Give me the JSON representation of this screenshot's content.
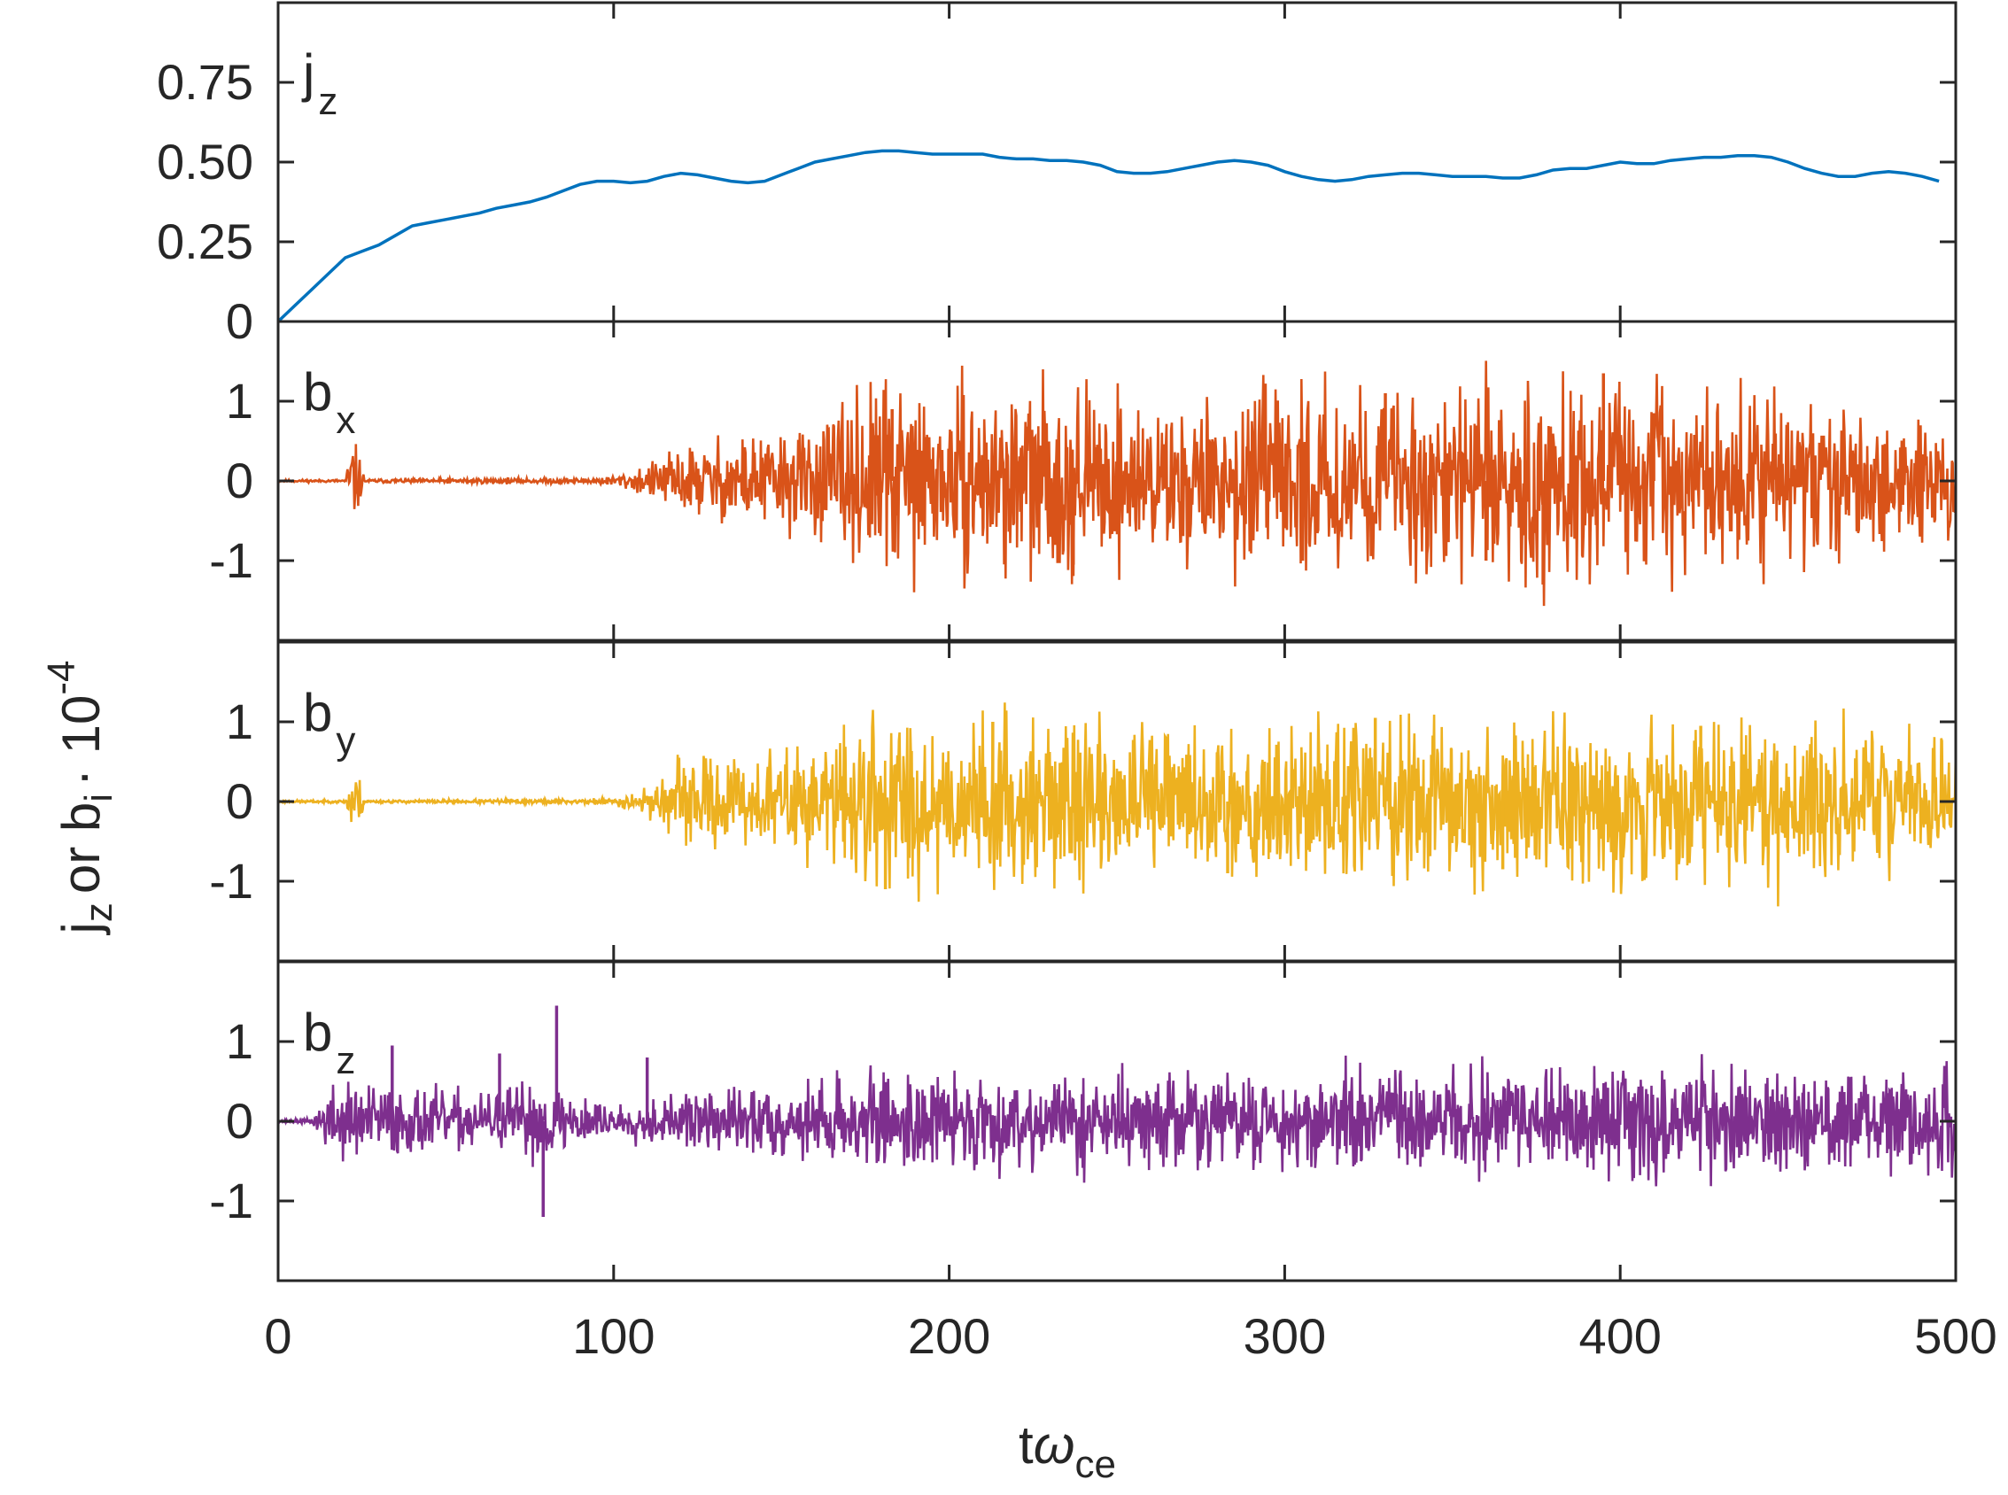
{
  "chart_data": {
    "type": "line",
    "layout": "stacked-panels",
    "xlabel_main": "t",
    "xlabel_omega": "ω",
    "xlabel_sub": "ce",
    "ylabel_j": "j",
    "ylabel_j_sub": "z",
    "ylabel_or": "or b",
    "ylabel_b_sub": "i",
    "ylabel_dot": "· 10",
    "ylabel_exp": "-4",
    "xlim": [
      0,
      500
    ],
    "xticks": [
      0,
      100,
      200,
      300,
      400,
      500
    ],
    "xtick_labels": [
      "0",
      "100",
      "200",
      "300",
      "400",
      "500"
    ],
    "panels": [
      {
        "name": "jz",
        "label": "j",
        "label_sub": "z",
        "color": "#0072BD",
        "ylim": [
          0,
          1.0
        ],
        "yticks": [
          0,
          0.25,
          0.5,
          0.75
        ],
        "ytick_labels": [
          "0",
          "0.25",
          "0.50",
          "0.75"
        ],
        "t": [
          0,
          5,
          10,
          15,
          20,
          25,
          30,
          35,
          40,
          45,
          50,
          55,
          60,
          65,
          70,
          75,
          80,
          85,
          90,
          95,
          100,
          105,
          110,
          115,
          120,
          125,
          130,
          135,
          140,
          145,
          150,
          155,
          160,
          165,
          170,
          175,
          180,
          185,
          190,
          195,
          200,
          205,
          210,
          215,
          220,
          225,
          230,
          235,
          240,
          245,
          250,
          255,
          260,
          265,
          270,
          275,
          280,
          285,
          290,
          295,
          300,
          305,
          310,
          315,
          320,
          325,
          330,
          335,
          340,
          345,
          350,
          355,
          360,
          365,
          370,
          375,
          380,
          385,
          390,
          395,
          400,
          405,
          410,
          415,
          420,
          425,
          430,
          435,
          440,
          445,
          450,
          455,
          460,
          465,
          470,
          475,
          480,
          485,
          490,
          495
        ],
        "values": [
          0.0,
          0.05,
          0.1,
          0.15,
          0.2,
          0.22,
          0.24,
          0.27,
          0.3,
          0.31,
          0.32,
          0.33,
          0.34,
          0.355,
          0.365,
          0.375,
          0.39,
          0.41,
          0.43,
          0.44,
          0.44,
          0.435,
          0.44,
          0.455,
          0.465,
          0.46,
          0.45,
          0.44,
          0.435,
          0.44,
          0.46,
          0.48,
          0.5,
          0.51,
          0.52,
          0.53,
          0.535,
          0.535,
          0.53,
          0.525,
          0.525,
          0.525,
          0.525,
          0.515,
          0.51,
          0.51,
          0.505,
          0.505,
          0.5,
          0.49,
          0.47,
          0.465,
          0.465,
          0.47,
          0.48,
          0.49,
          0.5,
          0.505,
          0.5,
          0.49,
          0.47,
          0.455,
          0.445,
          0.44,
          0.445,
          0.455,
          0.46,
          0.465,
          0.465,
          0.46,
          0.455,
          0.455,
          0.455,
          0.45,
          0.45,
          0.46,
          0.475,
          0.48,
          0.48,
          0.49,
          0.5,
          0.495,
          0.495,
          0.505,
          0.51,
          0.515,
          0.515,
          0.52,
          0.52,
          0.515,
          0.5,
          0.48,
          0.465,
          0.455,
          0.455,
          0.465,
          0.47,
          0.465,
          0.455,
          0.44
        ]
      },
      {
        "name": "bx",
        "label": "b",
        "label_sub": "x",
        "color": "#D95319",
        "ylim": [
          -2,
          2
        ],
        "yticks": [
          -1,
          0,
          1
        ],
        "ytick_labels": [
          "-1",
          "0",
          "1"
        ],
        "envelope_t": [
          0,
          20,
          22,
          24,
          26,
          30,
          60,
          90,
          100,
          110,
          120,
          140,
          160,
          170,
          180,
          200,
          220,
          240,
          260,
          280,
          300,
          320,
          340,
          360,
          380,
          400,
          420,
          440,
          460,
          480,
          500
        ],
        "envelope_amp": [
          0.01,
          0.01,
          0.35,
          0.2,
          0.01,
          0.015,
          0.02,
          0.02,
          0.04,
          0.12,
          0.25,
          0.35,
          0.4,
          0.55,
          0.75,
          0.6,
          0.7,
          0.65,
          0.55,
          0.6,
          0.65,
          0.65,
          0.7,
          0.75,
          0.75,
          0.7,
          0.65,
          0.6,
          0.55,
          0.5,
          0.45
        ],
        "spikes_t": [
          183,
          237,
          330,
          360,
          377,
          395,
          410
        ],
        "spikes_v": [
          0.9,
          -1.05,
          1.1,
          -1.0,
          -1.3,
          1.35,
          0.85
        ],
        "seed": 11
      },
      {
        "name": "by",
        "label": "b",
        "label_sub": "y",
        "color": "#EDB120",
        "ylim": [
          -2,
          2
        ],
        "yticks": [
          -1,
          0,
          1
        ],
        "ytick_labels": [
          "-1",
          "0",
          "1"
        ],
        "envelope_t": [
          0,
          20,
          22,
          24,
          26,
          30,
          60,
          90,
          100,
          110,
          120,
          140,
          160,
          170,
          180,
          200,
          220,
          240,
          260,
          280,
          300,
          320,
          340,
          360,
          380,
          400,
          420,
          440,
          460,
          480,
          500
        ],
        "envelope_amp": [
          0.01,
          0.01,
          0.35,
          0.2,
          0.01,
          0.01,
          0.015,
          0.02,
          0.03,
          0.1,
          0.3,
          0.35,
          0.4,
          0.55,
          0.7,
          0.6,
          0.6,
          0.55,
          0.55,
          0.55,
          0.6,
          0.65,
          0.65,
          0.65,
          0.65,
          0.6,
          0.6,
          0.6,
          0.55,
          0.5,
          0.45
        ],
        "spikes_t": [
          181,
          213,
          283,
          327,
          365,
          424
        ],
        "spikes_v": [
          -1.1,
          1.0,
          -0.9,
          1.05,
          -0.85,
          0.95
        ],
        "seed": 23
      },
      {
        "name": "bz",
        "label": "b",
        "label_sub": "z",
        "color": "#7E2F8E",
        "ylim": [
          -2,
          2
        ],
        "yticks": [
          -1,
          0,
          1
        ],
        "ytick_labels": [
          "-1",
          "0",
          "1"
        ],
        "envelope_t": [
          0,
          10,
          15,
          20,
          40,
          60,
          80,
          100,
          120,
          140,
          160,
          180,
          200,
          220,
          240,
          260,
          280,
          300,
          320,
          340,
          360,
          380,
          400,
          420,
          440,
          460,
          480,
          500
        ],
        "envelope_amp": [
          0.01,
          0.02,
          0.25,
          0.3,
          0.25,
          0.2,
          0.3,
          0.12,
          0.2,
          0.25,
          0.3,
          0.35,
          0.35,
          0.35,
          0.35,
          0.35,
          0.35,
          0.35,
          0.4,
          0.4,
          0.4,
          0.4,
          0.4,
          0.4,
          0.4,
          0.4,
          0.4,
          0.4
        ],
        "spikes_t": [
          34,
          66,
          79,
          83,
          110
        ],
        "spikes_v": [
          0.95,
          0.85,
          -1.2,
          1.45,
          0.8
        ],
        "seed": 37
      }
    ]
  }
}
